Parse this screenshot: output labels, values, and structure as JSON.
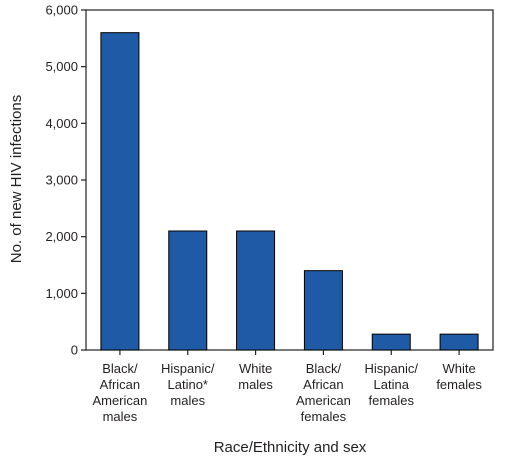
{
  "chart_data": {
    "type": "bar",
    "title": "",
    "xlabel": "Race/Ethnicity and sex",
    "ylabel": "No. of new HIV infections",
    "ylim": [
      0,
      6000
    ],
    "yticks": [
      "0",
      "1,000",
      "2,000",
      "3,000",
      "4,000",
      "5,000",
      "6,000"
    ],
    "ytick_values": [
      0,
      1000,
      2000,
      3000,
      4000,
      5000,
      6000
    ],
    "categories": [
      [
        "Black/",
        "African",
        "American",
        "males"
      ],
      [
        "Hispanic/",
        "Latino*",
        "males"
      ],
      [
        "White",
        "males"
      ],
      [
        "Black/",
        "African",
        "American",
        "females"
      ],
      [
        "Hispanic/",
        "Latina",
        "females"
      ],
      [
        "White",
        "females"
      ]
    ],
    "values": [
      5600,
      2100,
      2100,
      1400,
      280,
      280
    ],
    "bar_color": "#1f5aa6",
    "bar_stroke": "#000000",
    "grid": false,
    "legend": "none"
  }
}
